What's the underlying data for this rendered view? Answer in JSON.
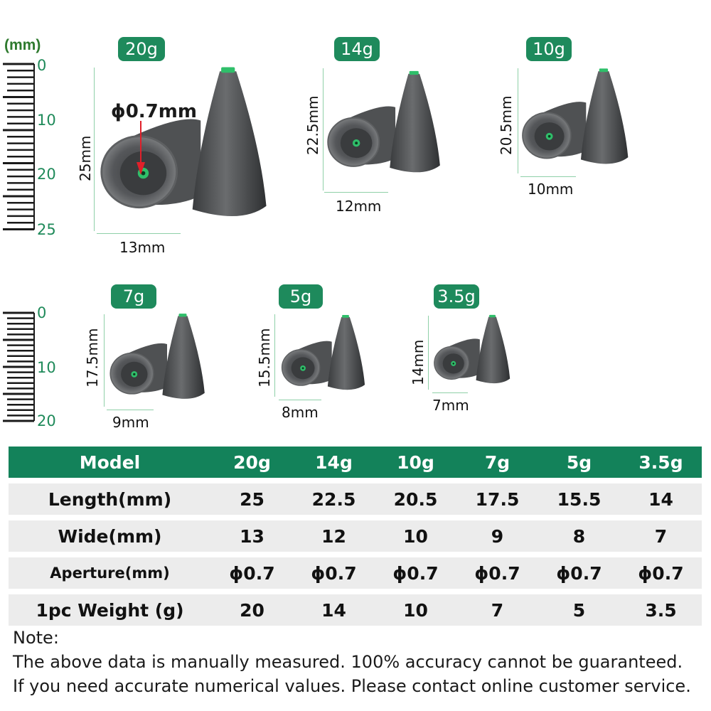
{
  "unit_label": "(mm)",
  "ruler_top": [
    "0",
    "10",
    "20",
    "25"
  ],
  "ruler_bottom": [
    "0",
    "10",
    "20"
  ],
  "hole_label": "ϕ0.7mm",
  "products": [
    {
      "weight": "20g",
      "length": "25mm",
      "width": "13mm"
    },
    {
      "weight": "14g",
      "length": "22.5mm",
      "width": "12mm"
    },
    {
      "weight": "10g",
      "length": "20.5mm",
      "width": "10mm"
    },
    {
      "weight": "7g",
      "length": "17.5mm",
      "width": "9mm"
    },
    {
      "weight": "5g",
      "length": "15.5mm",
      "width": "8mm"
    },
    {
      "weight": "3.5g",
      "length": "14mm",
      "width": "7mm"
    }
  ],
  "table": {
    "header": [
      "Model",
      "20g",
      "14g",
      "10g",
      "7g",
      "5g",
      "3.5g"
    ],
    "rows": [
      [
        "Length(mm)",
        "25",
        "22.5",
        "20.5",
        "17.5",
        "15.5",
        "14"
      ],
      [
        "Wide(mm)",
        "13",
        "12",
        "10",
        "9",
        "8",
        "7"
      ],
      [
        "Aperture(mm)",
        "ϕ0.7",
        "ϕ0.7",
        "ϕ0.7",
        "ϕ0.7",
        "ϕ0.7",
        "ϕ0.7"
      ],
      [
        "1pc Weight (g)",
        "20",
        "14",
        "10",
        "7",
        "5",
        "3.5"
      ]
    ]
  },
  "note": {
    "title": "Note:",
    "line1": "The above data is manually measured. 100% accuracy cannot be guaranteed.",
    "line2": "If you need accurate numerical values. Please contact online customer service."
  },
  "colors": {
    "accent": "#1e8a5c",
    "row_bg": "#ececec",
    "sinker": "#4a4c4e",
    "tip": "#2fbf6a"
  }
}
